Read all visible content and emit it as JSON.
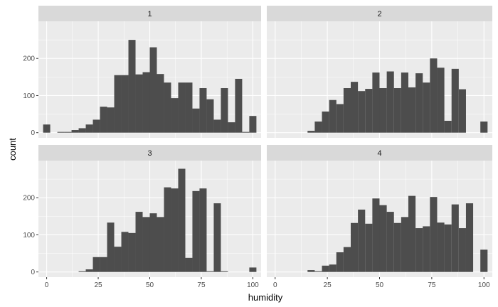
{
  "chart_data": {
    "type": "bar",
    "xlabel": "humidity",
    "ylabel": "count",
    "xlim": [
      -4,
      104
    ],
    "ylim": [
      -14,
      300
    ],
    "x_ticks": [
      0,
      25,
      50,
      75,
      100
    ],
    "x_tick_labels": [
      "0",
      "25",
      "50",
      "75",
      "100"
    ],
    "y_ticks": [
      0,
      100,
      200
    ],
    "y_tick_labels": [
      "0",
      "100",
      "200"
    ],
    "bin_width": 3.45,
    "bin_centers": [
      0,
      3.45,
      6.9,
      10.34,
      13.79,
      17.24,
      20.69,
      24.14,
      27.59,
      31.03,
      34.48,
      37.93,
      41.38,
      44.83,
      48.28,
      51.72,
      55.17,
      58.62,
      62.07,
      65.52,
      68.97,
      72.41,
      75.86,
      79.31,
      82.76,
      86.21,
      89.66,
      93.1,
      96.55,
      100
    ],
    "grid": true,
    "colors": {
      "bar": "#4d4d4d",
      "panel": "#ebebeb",
      "strip": "#d9d9d9",
      "grid": "#ffffff"
    },
    "panels": [
      {
        "label": "1",
        "values": [
          22,
          0,
          2,
          2,
          7,
          12,
          22,
          35,
          70,
          68,
          155,
          155,
          250,
          157,
          163,
          230,
          158,
          135,
          93,
          135,
          135,
          65,
          120,
          90,
          35,
          120,
          28,
          145,
          2,
          45
        ]
      },
      {
        "label": "2",
        "values": [
          0,
          0,
          0,
          0,
          0,
          5,
          30,
          57,
          88,
          77,
          120,
          137,
          112,
          118,
          162,
          120,
          165,
          120,
          162,
          122,
          160,
          135,
          200,
          175,
          32,
          172,
          117,
          0,
          0,
          30
        ]
      },
      {
        "label": "3",
        "values": [
          0,
          0,
          0,
          0,
          0,
          2,
          7,
          40,
          40,
          133,
          68,
          108,
          105,
          162,
          148,
          158,
          148,
          228,
          225,
          278,
          38,
          218,
          225,
          2,
          185,
          2,
          0,
          0,
          0,
          12
        ]
      },
      {
        "label": "4",
        "values": [
          0,
          0,
          0,
          0,
          0,
          5,
          2,
          17,
          20,
          53,
          67,
          132,
          168,
          130,
          198,
          180,
          162,
          132,
          148,
          205,
          118,
          123,
          202,
          133,
          128,
          182,
          118,
          185,
          0,
          60
        ]
      }
    ]
  }
}
